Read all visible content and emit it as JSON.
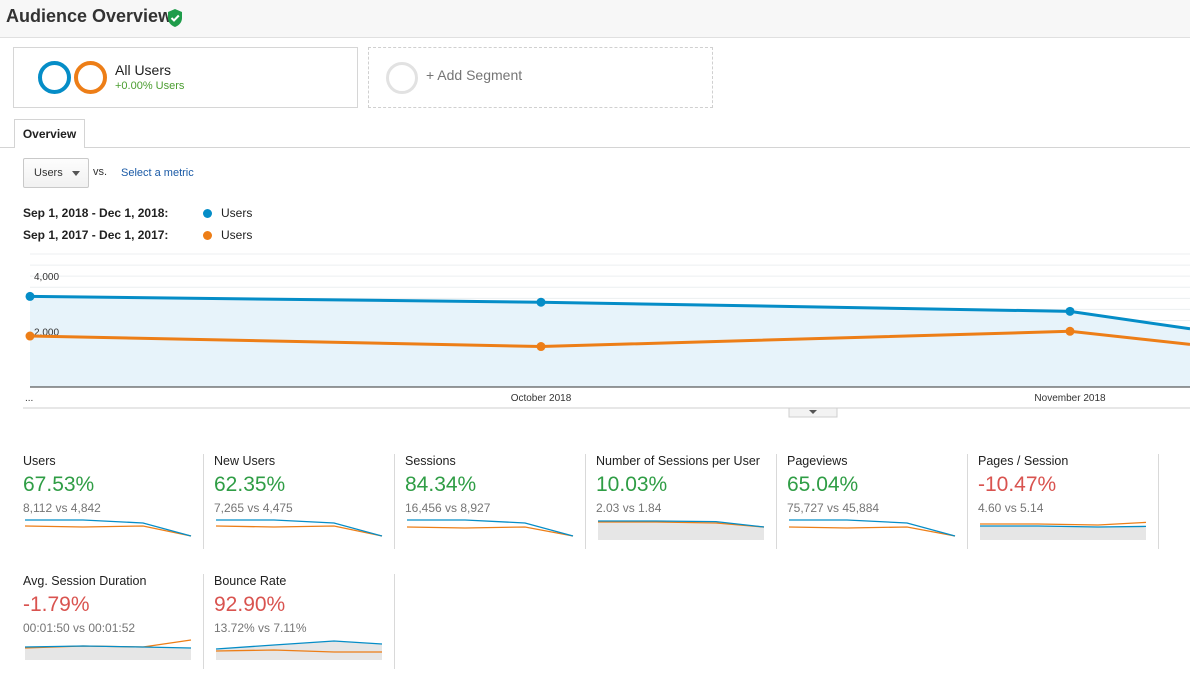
{
  "header": {
    "title": "Audience Overview",
    "verified_icon": "verified-shield-icon"
  },
  "segments": {
    "all_users": {
      "title": "All Users",
      "subtitle": "+0.00% Users"
    },
    "add_segment": {
      "label": "+ Add Segment"
    }
  },
  "tabs": [
    {
      "label": "Overview",
      "active": true
    }
  ],
  "metric_picker": {
    "selected": "Users",
    "vs_label": "vs.",
    "select_link": "Select a metric"
  },
  "legend": [
    {
      "range": "Sep 1, 2018 - Dec 1, 2018:",
      "label": "Users",
      "color": "#058dc7"
    },
    {
      "range": "Sep 1, 2017 - Dec 1, 2017:",
      "label": "Users",
      "color": "#ed7e17"
    }
  ],
  "chart_data": {
    "type": "line",
    "x": [
      "Sep 1",
      "Oct 1",
      "Nov 1",
      "Dec 1"
    ],
    "tick_labels": [
      "...",
      "October 2018",
      "November 2018"
    ],
    "yticks": [
      "4,000",
      "2,000"
    ],
    "ylim": [
      0,
      4800
    ],
    "grid": true,
    "series": [
      {
        "name": "Users",
        "period": "Sep 1, 2018 - Dec 1, 2018",
        "color": "#058dc7",
        "values": [
          3270,
          3060,
          2730,
          2100
        ]
      },
      {
        "name": "Users",
        "period": "Sep 1, 2017 - Dec 1, 2017",
        "color": "#ed7e17",
        "values": [
          1840,
          1460,
          2010,
          1540
        ]
      }
    ]
  },
  "metrics": [
    {
      "name": "Users",
      "change": "67.53%",
      "trend": "positive",
      "compare": "8,112 vs 4,842",
      "spark": {
        "current": [
          0.9,
          0.9,
          0.75,
          0.1
        ],
        "previous": [
          0.6,
          0.55,
          0.6,
          0.1
        ],
        "shaded": false
      }
    },
    {
      "name": "New Users",
      "change": "62.35%",
      "trend": "positive",
      "compare": "7,265 vs 4,475",
      "spark": {
        "current": [
          0.9,
          0.9,
          0.75,
          0.1
        ],
        "previous": [
          0.6,
          0.55,
          0.6,
          0.1
        ],
        "shaded": false
      }
    },
    {
      "name": "Sessions",
      "change": "84.34%",
      "trend": "positive",
      "compare": "16,456 vs 8,927",
      "spark": {
        "current": [
          0.9,
          0.9,
          0.75,
          0.1
        ],
        "previous": [
          0.55,
          0.5,
          0.55,
          0.1
        ],
        "shaded": false
      }
    },
    {
      "name": "Number of Sessions per User",
      "change": "10.03%",
      "trend": "positive",
      "compare": "2.03 vs 1.84",
      "spark": {
        "current": [
          0.85,
          0.85,
          0.82,
          0.55
        ],
        "previous": [
          0.8,
          0.8,
          0.75,
          0.55
        ],
        "shaded": true
      }
    },
    {
      "name": "Pageviews",
      "change": "65.04%",
      "trend": "positive",
      "compare": "75,727 vs 45,884",
      "spark": {
        "current": [
          0.9,
          0.9,
          0.75,
          0.1
        ],
        "previous": [
          0.55,
          0.5,
          0.55,
          0.1
        ],
        "shaded": false
      }
    },
    {
      "name": "Pages / Session",
      "change": "-10.47%",
      "trend": "negative",
      "compare": "4.60 vs 5.14",
      "spark": {
        "current": [
          0.6,
          0.6,
          0.55,
          0.58
        ],
        "previous": [
          0.7,
          0.7,
          0.65,
          0.78
        ],
        "shaded": true
      }
    },
    {
      "name": "Avg. Session Duration",
      "change": "-1.79%",
      "trend": "negative",
      "compare": "00:01:50 vs 00:01:52",
      "spark": {
        "current": [
          0.55,
          0.6,
          0.55,
          0.5
        ],
        "previous": [
          0.5,
          0.6,
          0.55,
          0.9
        ],
        "shaded": true
      }
    },
    {
      "name": "Bounce Rate",
      "change": "92.90%",
      "trend": "positive-red",
      "compare": "13.72% vs 7.11%",
      "spark": {
        "current": [
          0.45,
          0.65,
          0.85,
          0.7
        ],
        "previous": [
          0.35,
          0.4,
          0.3,
          0.3
        ],
        "shaded": true
      }
    }
  ],
  "chart_toggle_icon": "chevron-down-icon"
}
